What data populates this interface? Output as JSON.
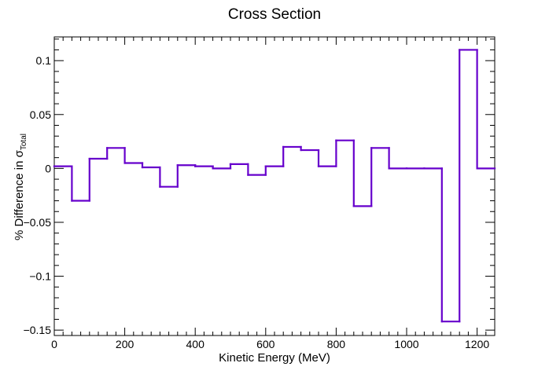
{
  "chart_data": {
    "type": "line",
    "style": "step-histogram",
    "title": "Cross Section",
    "xlabel": "Kinetic Energy (MeV)",
    "ylabel": {
      "prefix": "% Difference in ",
      "symbol": "σ",
      "subscript": "Total"
    },
    "xlim": [
      0,
      1250
    ],
    "ylim": [
      -0.155,
      0.122
    ],
    "x_ticks": [
      0,
      200,
      400,
      600,
      800,
      1000,
      1200
    ],
    "x_tick_labels": [
      "0",
      "200",
      "400",
      "600",
      "800",
      "1000",
      "1200"
    ],
    "y_ticks": [
      -0.15,
      -0.1,
      -0.05,
      0,
      0.05,
      0.1
    ],
    "y_tick_labels": [
      "−0.15",
      "−0.1",
      "−0.05",
      "0",
      "0.05",
      "0.1"
    ],
    "grid": false,
    "line_color": "#6600cc",
    "bin_edges": [
      0,
      50,
      100,
      150,
      200,
      250,
      300,
      350,
      400,
      450,
      500,
      550,
      600,
      650,
      700,
      750,
      800,
      850,
      900,
      950,
      1000,
      1050,
      1100,
      1150,
      1200,
      1250
    ],
    "values": [
      0.002,
      -0.03,
      0.009,
      0.019,
      0.005,
      0.001,
      -0.017,
      0.003,
      0.002,
      0.0,
      0.004,
      -0.006,
      0.002,
      0.02,
      0.017,
      0.002,
      0.026,
      -0.035,
      0.019,
      0.0,
      0.0,
      0.0,
      -0.142,
      0.11,
      0.0
    ]
  }
}
